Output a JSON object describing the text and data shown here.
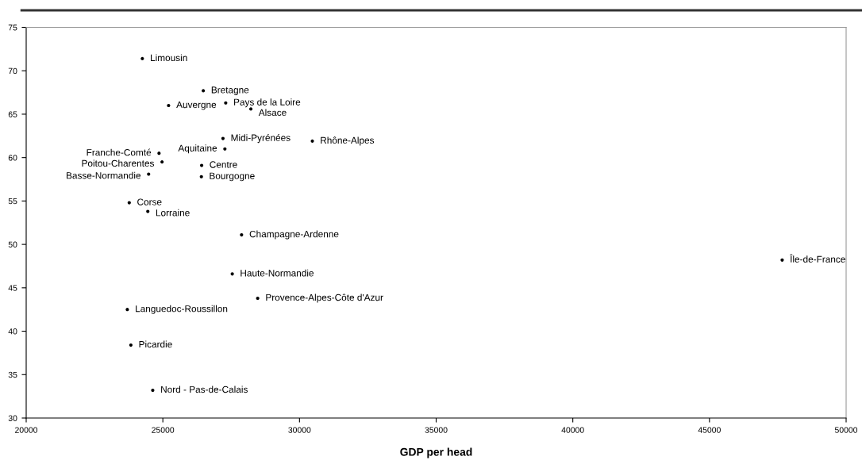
{
  "chart_data": {
    "type": "scatter",
    "xlabel": "GDP per head",
    "series": [
      {
        "color": "#000000",
        "x": [
          24250,
          26480,
          25210,
          27300,
          28220,
          27200,
          27270,
          30470,
          24860,
          24970,
          26420,
          24480,
          26410,
          23770,
          24450,
          27880,
          27540,
          28470,
          23700,
          23830,
          24630,
          47660
        ],
        "values": [
          71.4,
          67.7,
          66.0,
          66.3,
          65.6,
          62.2,
          61.0,
          61.9,
          60.5,
          59.5,
          59.1,
          58.1,
          57.8,
          54.8,
          53.8,
          51.1,
          46.6,
          43.8,
          42.5,
          38.4,
          33.2,
          48.2
        ]
      }
    ],
    "annotations": [
      {
        "text": "Limousin",
        "x": 24250,
        "y": 71.4
      },
      {
        "text": "Bretagne",
        "x": 26480,
        "y": 67.7
      },
      {
        "text": "Auvergne",
        "x": 25210,
        "y": 66.0
      },
      {
        "text": "Pays de la Loire",
        "x": 27300,
        "y": 66.3
      },
      {
        "text": "Alsace",
        "x": 28220,
        "y": 65.6
      },
      {
        "text": "Midi-Pyrénées",
        "x": 27200,
        "y": 62.2
      },
      {
        "text": "Aquitaine",
        "x": 27270,
        "y": 61.0
      },
      {
        "text": "Rhône-Alpes",
        "x": 30470,
        "y": 61.9
      },
      {
        "text": "Franche-Comté",
        "x": 24860,
        "y": 60.5
      },
      {
        "text": "Poitou-Charentes",
        "x": 24970,
        "y": 59.5
      },
      {
        "text": "Centre",
        "x": 26420,
        "y": 59.1
      },
      {
        "text": "Basse-Normandie",
        "x": 24480,
        "y": 58.1
      },
      {
        "text": "Bourgogne",
        "x": 26410,
        "y": 57.8
      },
      {
        "text": "Corse",
        "x": 23770,
        "y": 54.8
      },
      {
        "text": "Lorraine",
        "x": 24450,
        "y": 53.8
      },
      {
        "text": "Champagne-Ardenne",
        "x": 27880,
        "y": 51.1
      },
      {
        "text": "Haute-Normandie",
        "x": 27540,
        "y": 46.6
      },
      {
        "text": "Provence-Alpes-Côte d'Azur",
        "x": 28470,
        "y": 43.8
      },
      {
        "text": "Languedoc-Roussillon",
        "x": 23700,
        "y": 42.5
      },
      {
        "text": "Picardie",
        "x": 23830,
        "y": 38.4
      },
      {
        "text": "Nord - Pas-de-Calais",
        "x": 24630,
        "y": 33.2
      },
      {
        "text": "Île-de-France",
        "x": 47660,
        "y": 48.2
      }
    ],
    "xlim": [
      20000,
      50000
    ],
    "xticks": [
      20000,
      25000,
      30000,
      35000,
      40000,
      45000,
      50000
    ],
    "ylim": [
      30,
      75
    ],
    "yticks": [
      30,
      35,
      40,
      45,
      50,
      55,
      60,
      65,
      70,
      75
    ],
    "grid": false,
    "legend": false,
    "marker": "circle"
  }
}
